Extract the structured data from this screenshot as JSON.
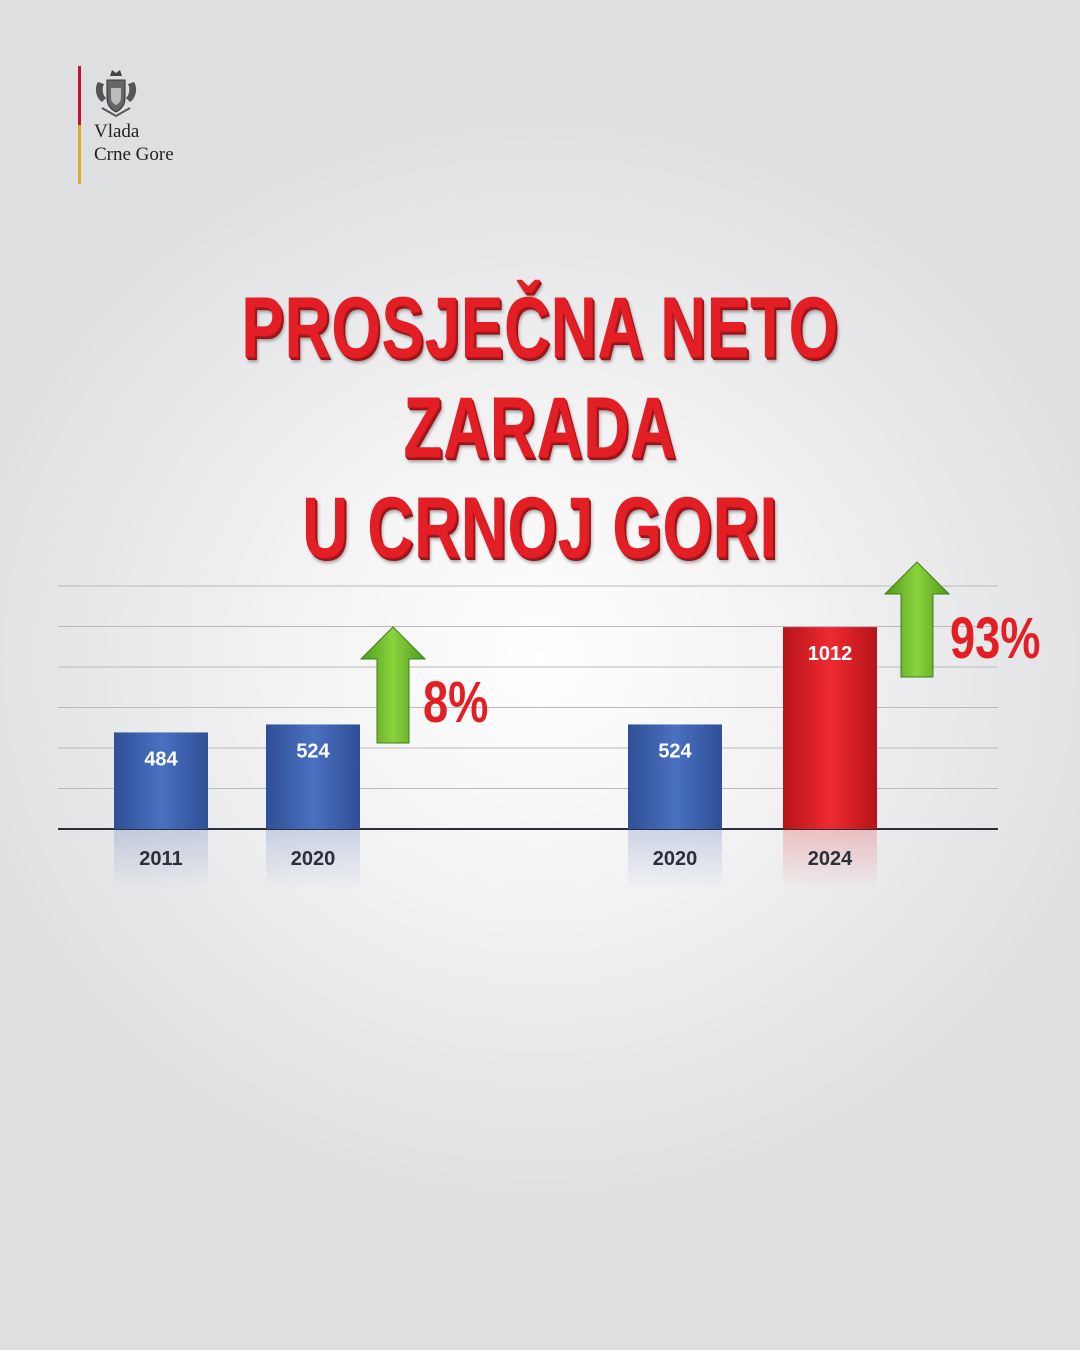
{
  "brand": {
    "line1": "Vlada",
    "line2": "Crne Gore",
    "emblem_icon": "coat-of-arms-icon",
    "bar_colors": [
      "#c8102e",
      "#e3a82b"
    ]
  },
  "title": {
    "line1": "PROSJEČNA NETO ZARADA",
    "line2": "U CRNOJ GORI",
    "color": "#e31e24"
  },
  "chart_data": {
    "type": "bar",
    "title": "PROSJEČNA NETO ZARADA U CRNOJ GORI",
    "xlabel": "",
    "ylabel": "",
    "grid": true,
    "ylim": [
      0,
      1200
    ],
    "groups": [
      {
        "categories": [
          "2011",
          "2020"
        ],
        "values": [
          484,
          524
        ],
        "colors": [
          "#3f63b1",
          "#3f63b1"
        ],
        "change_label": "8%"
      },
      {
        "categories": [
          "2020",
          "2024"
        ],
        "values": [
          524,
          1012
        ],
        "colors": [
          "#3f63b1",
          "#e31e24"
        ],
        "change_label": "93%"
      }
    ],
    "arrow_color": "#6fbf2a",
    "change_label_color": "#e31e24"
  }
}
